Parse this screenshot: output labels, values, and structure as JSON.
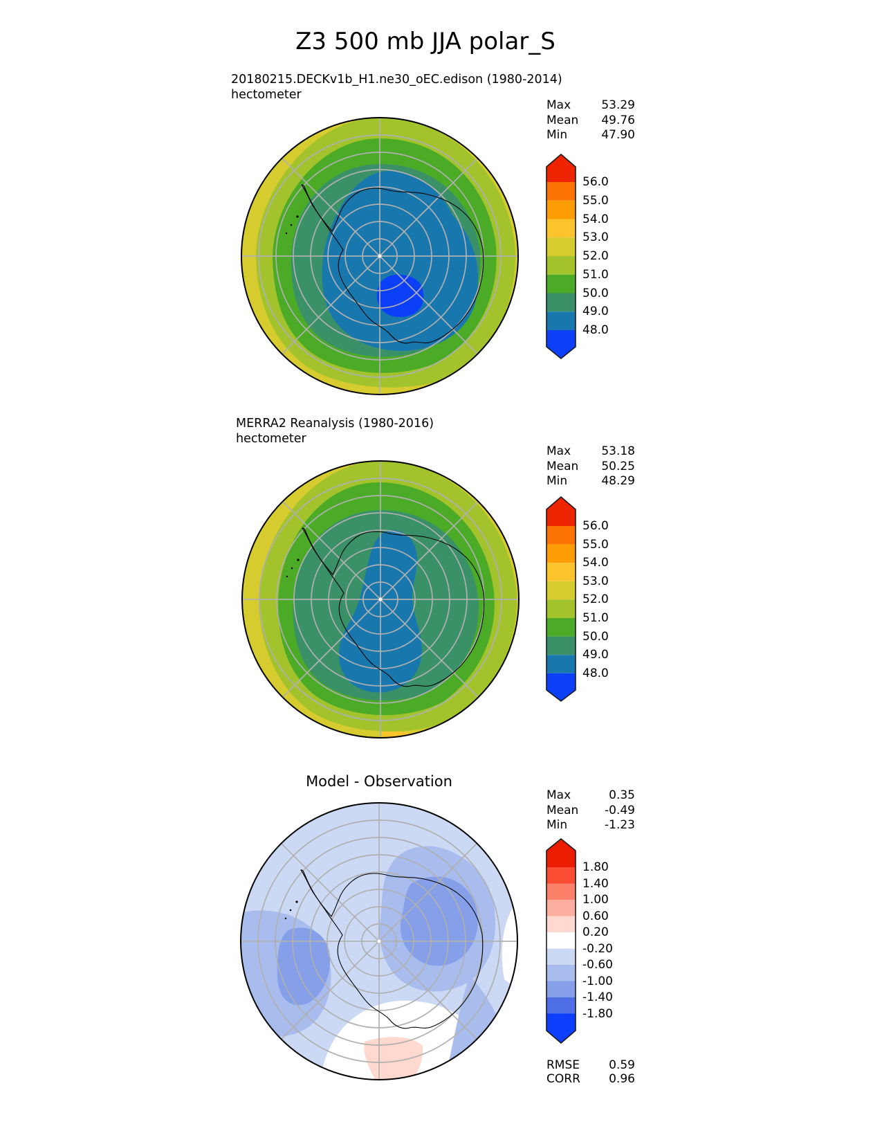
{
  "title": "Z3 500 mb JJA polar_S",
  "panels": [
    {
      "name": "model",
      "subtitle": "20180215.DECKv1b_H1.ne30_oEC.edison (1980-2014)",
      "units": "hectometer",
      "stats": [
        {
          "label": "Max",
          "value": "53.29"
        },
        {
          "label": "Mean",
          "value": "49.76"
        },
        {
          "label": "Min",
          "value": "47.90"
        }
      ],
      "colorbar": {
        "labels": [
          "56.0",
          "55.0",
          "54.0",
          "53.0",
          "52.0",
          "51.0",
          "50.0",
          "49.0",
          "48.0"
        ],
        "colors": [
          "#ee2400",
          "#fb7304",
          "#fc9d03",
          "#fbc42d",
          "#d6cc2f",
          "#a2c32c",
          "#4bab27",
          "#3a9168",
          "#1878ae",
          "#0c3ff8"
        ]
      }
    },
    {
      "name": "obs",
      "subtitle": "MERRA2 Reanalysis (1980-2016)",
      "units": "hectometer",
      "stats": [
        {
          "label": "Max",
          "value": "53.18"
        },
        {
          "label": "Mean",
          "value": "50.25"
        },
        {
          "label": "Min",
          "value": "48.29"
        }
      ],
      "colorbar": {
        "labels": [
          "56.0",
          "55.0",
          "54.0",
          "53.0",
          "52.0",
          "51.0",
          "50.0",
          "49.0",
          "48.0"
        ],
        "colors": [
          "#ee2400",
          "#fb7304",
          "#fc9d03",
          "#fbc42d",
          "#d6cc2f",
          "#a2c32c",
          "#4bab27",
          "#3a9168",
          "#1878ae",
          "#0c3ff8"
        ]
      }
    },
    {
      "name": "diff",
      "subtitle": "Model - Observation",
      "stats": [
        {
          "label": "Max",
          "value": "0.35"
        },
        {
          "label": "Mean",
          "value": "-0.49"
        },
        {
          "label": "Min",
          "value": "-1.23"
        }
      ],
      "colorbar": {
        "labels": [
          "1.80",
          "1.40",
          "1.00",
          "0.60",
          "0.20",
          "-0.20",
          "-0.60",
          "-1.00",
          "-1.40",
          "-1.80"
        ],
        "colors": [
          "#ec1c00",
          "#fb4c34",
          "#fd8068",
          "#feae9e",
          "#ffd8d0",
          "#ffffff",
          "#ccd9f5",
          "#a8bcee",
          "#85a0e9",
          "#4e6fe5",
          "#0b3efd"
        ]
      },
      "metrics": [
        {
          "label": "RMSE",
          "value": "0.59"
        },
        {
          "label": "CORR",
          "value": "0.96"
        }
      ]
    }
  ],
  "chart_data": [
    {
      "type": "heatmap",
      "title": "20180215.DECKv1b_H1.ne30_oEC.edison (1980-2014)",
      "variable": "Z3",
      "pressure_level": "500 mb",
      "season": "JJA",
      "region": "polar_S",
      "projection": "south polar stereographic",
      "units": "hectometer",
      "contour_levels": [
        48.0,
        49.0,
        50.0,
        51.0,
        52.0,
        53.0,
        54.0,
        55.0,
        56.0
      ],
      "stats": {
        "max": 53.29,
        "mean": 49.76,
        "min": 47.9
      }
    },
    {
      "type": "heatmap",
      "title": "MERRA2 Reanalysis (1980-2016)",
      "variable": "Z3",
      "pressure_level": "500 mb",
      "season": "JJA",
      "region": "polar_S",
      "projection": "south polar stereographic",
      "units": "hectometer",
      "contour_levels": [
        48.0,
        49.0,
        50.0,
        51.0,
        52.0,
        53.0,
        54.0,
        55.0,
        56.0
      ],
      "stats": {
        "max": 53.18,
        "mean": 50.25,
        "min": 48.29
      }
    },
    {
      "type": "heatmap",
      "title": "Model - Observation",
      "variable": "Z3 difference",
      "units": "hectometer",
      "projection": "south polar stereographic",
      "contour_levels": [
        -1.8,
        -1.4,
        -1.0,
        -0.6,
        -0.2,
        0.2,
        0.6,
        1.0,
        1.4,
        1.8
      ],
      "stats": {
        "max": 0.35,
        "mean": -0.49,
        "min": -1.23,
        "rmse": 0.59,
        "corr": 0.96
      }
    }
  ]
}
